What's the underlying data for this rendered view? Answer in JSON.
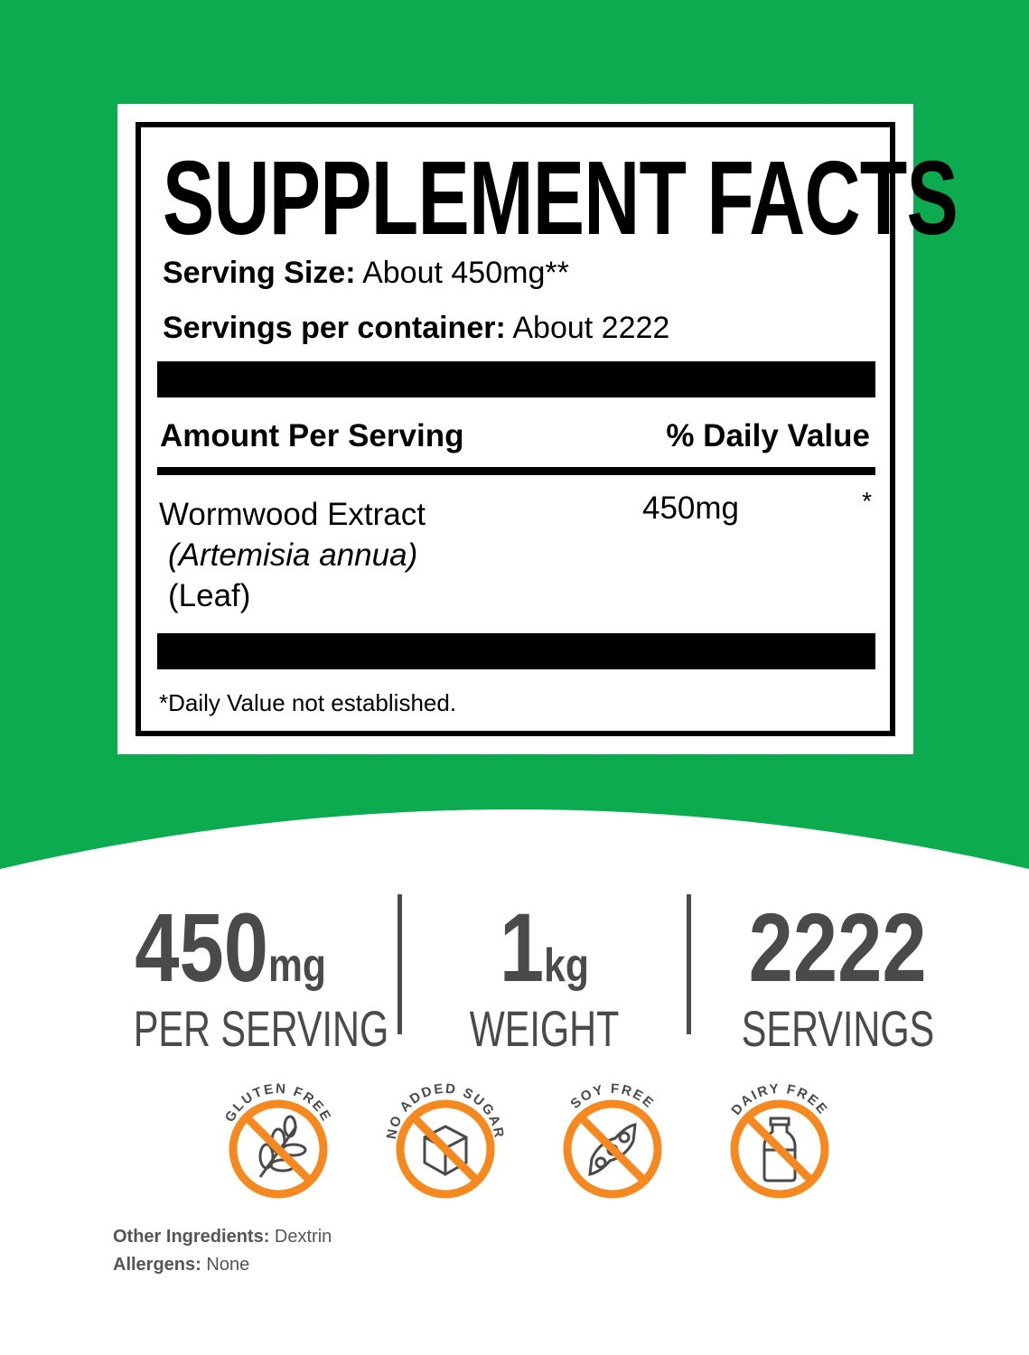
{
  "colors": {
    "green": "#0dab4f",
    "orange": "#f5891f",
    "gray": "#4a4a4a"
  },
  "facts": {
    "title": "SUPPLEMENT FACTS",
    "serving_size_label": "Serving Size:",
    "serving_size_value": "About 450mg**",
    "servings_label": "Servings per container:",
    "servings_value": "About 2222",
    "amount_header": "Amount Per Serving",
    "dv_header": "% Daily Value",
    "ingredient_name": "Wormwood Extract",
    "ingredient_latin": "(Artemisia annua)",
    "ingredient_part": "(Leaf)",
    "ingredient_amount": "450mg",
    "ingredient_dv": "*",
    "footnote": "*Daily Value not established."
  },
  "stats": [
    {
      "value": "450",
      "unit": "mg",
      "label": "PER SERVING"
    },
    {
      "value": "1",
      "unit": "kg",
      "label": "WEIGHT"
    },
    {
      "value": "2222",
      "unit": "",
      "label": "SERVINGS"
    }
  ],
  "badges": [
    {
      "label": "GLUTEN FREE",
      "icon": "wheat-icon"
    },
    {
      "label": "NO ADDED SUGAR",
      "icon": "sugar-cube-icon"
    },
    {
      "label": "SOY FREE",
      "icon": "soybean-icon"
    },
    {
      "label": "DAIRY FREE",
      "icon": "milk-bottle-icon"
    }
  ],
  "other_ingredients_label": "Other Ingredients:",
  "other_ingredients": "Dextrin",
  "allergens_label": "Allergens:",
  "allergens": "None"
}
